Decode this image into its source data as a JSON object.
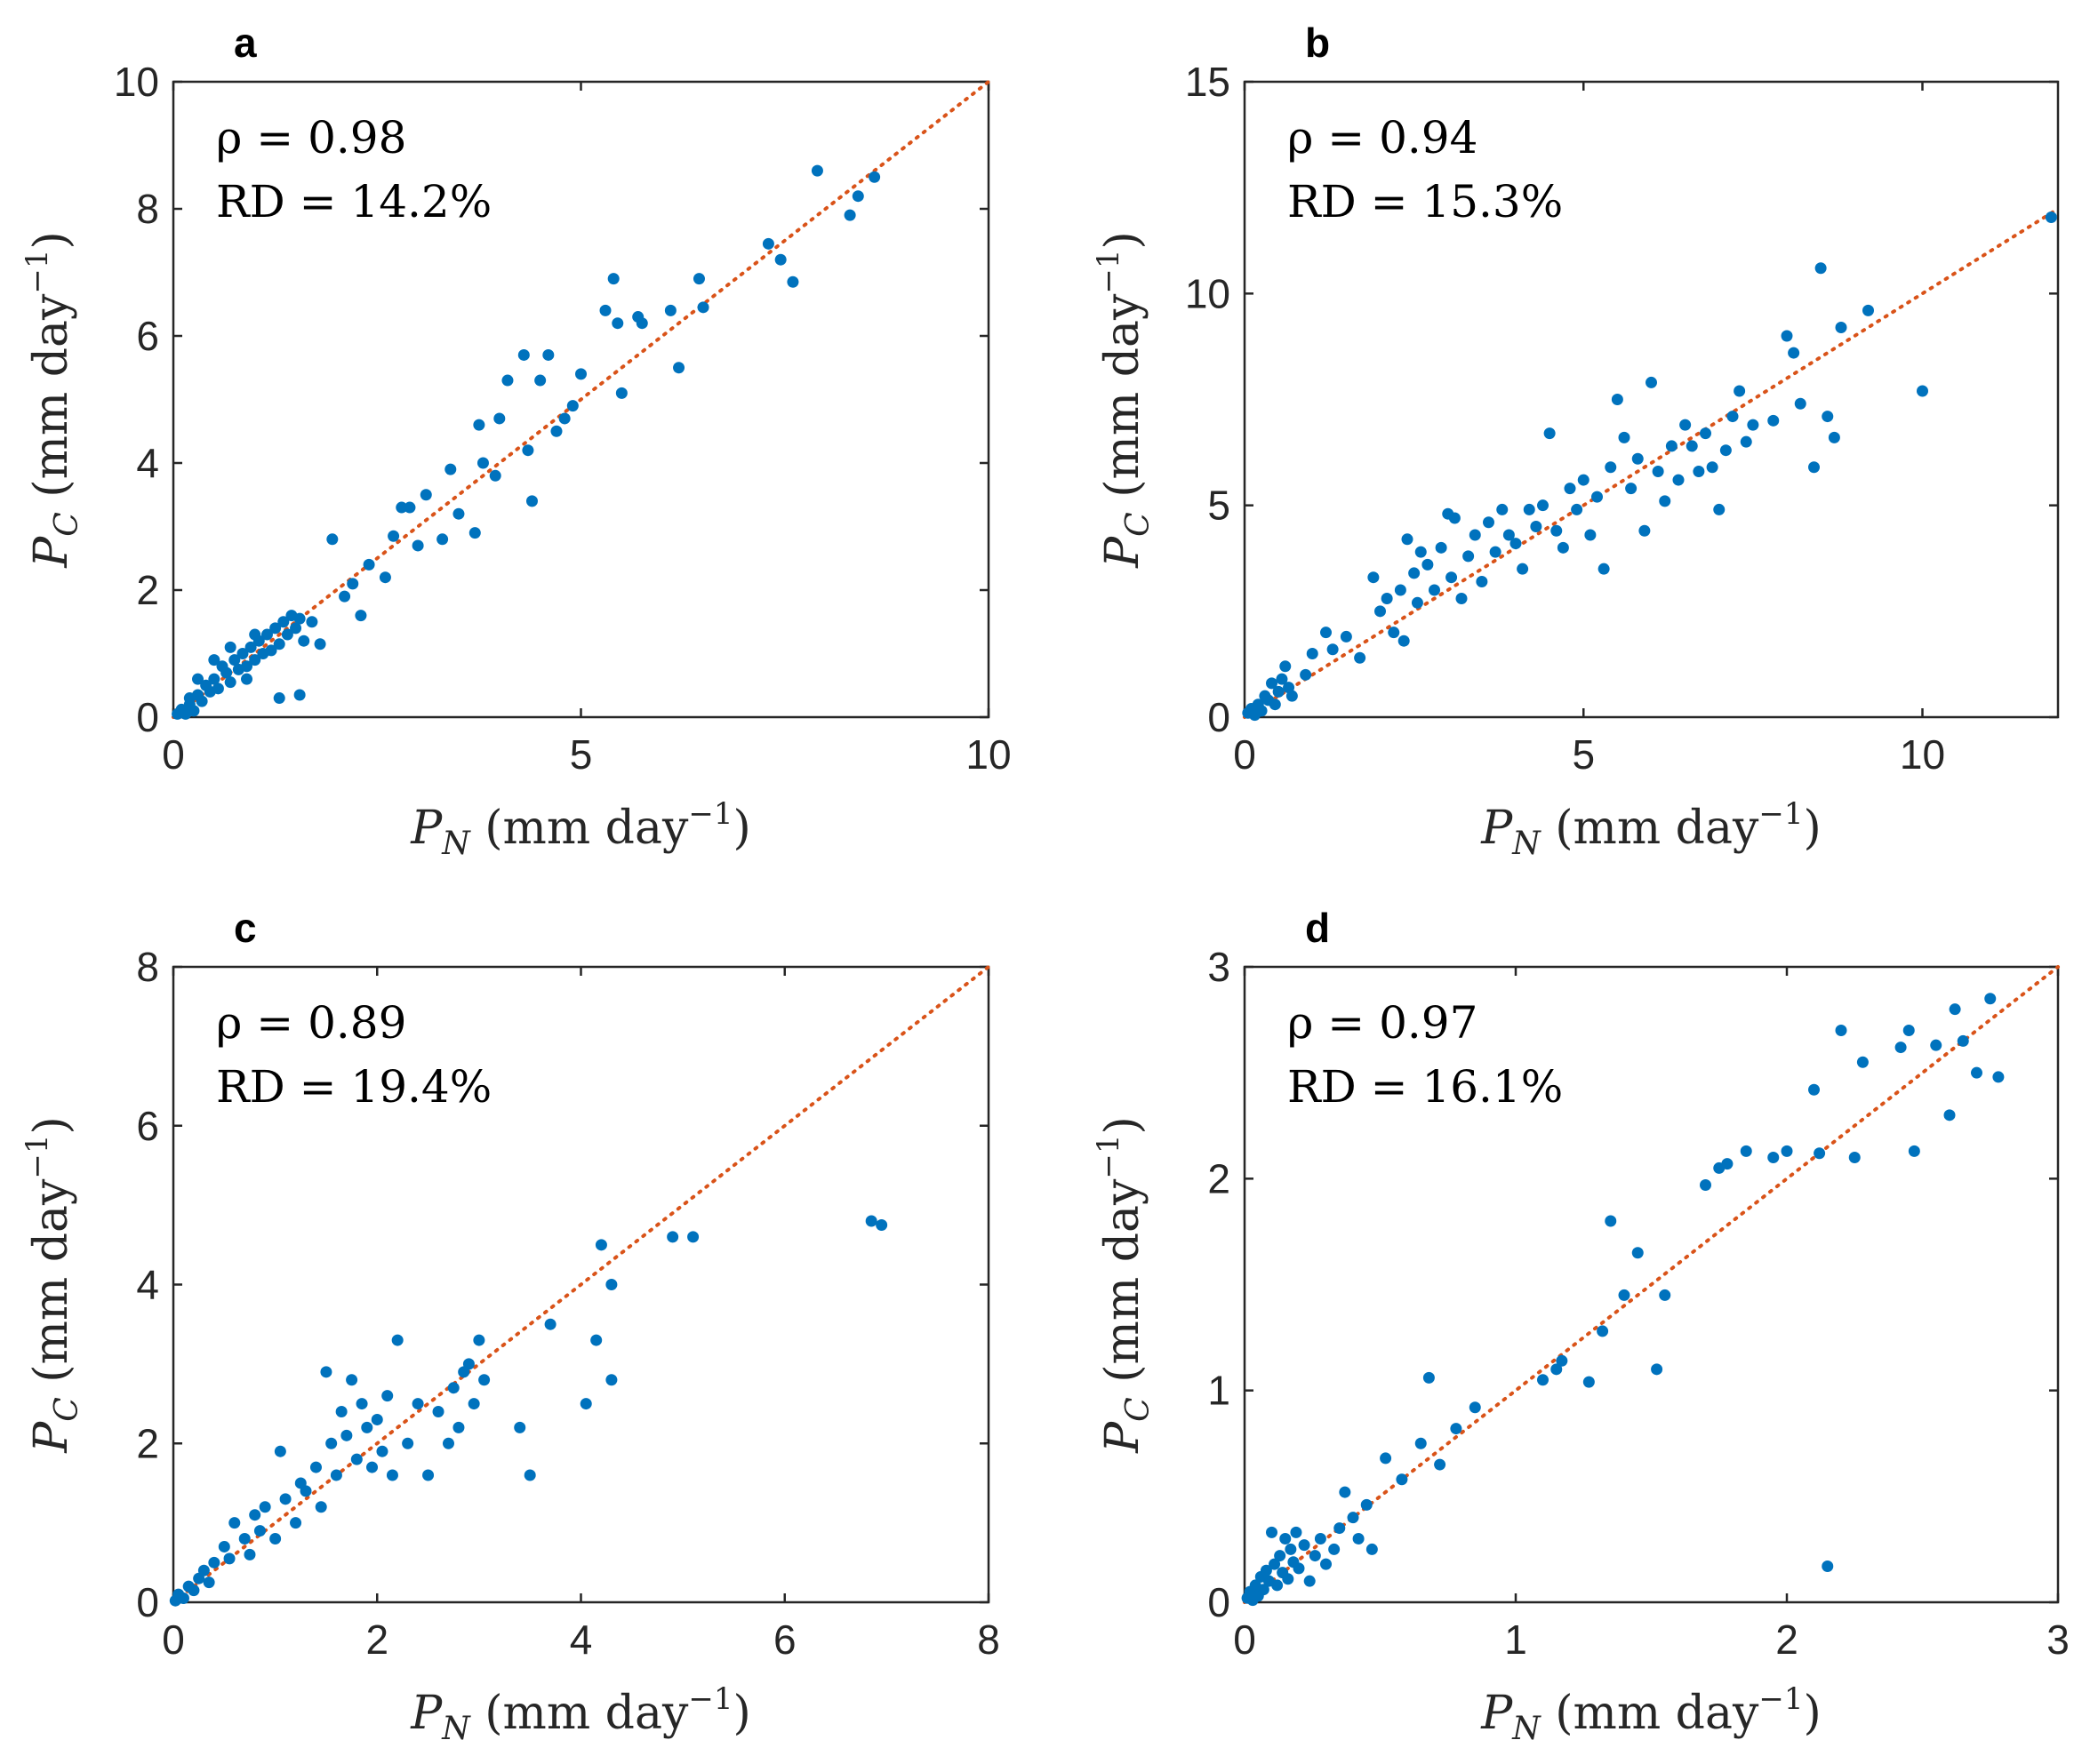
{
  "chart_data": [
    {
      "type": "scatter",
      "panel_label": "a",
      "annotation_rho": "ρ = 0.98",
      "annotation_rd": "RD = 14.2%",
      "xlabel": "P_N (mm day^-1)",
      "ylabel": "P_C (mm day^-1)",
      "xlabel_main": "P",
      "xlabel_sub": "N",
      "xlabel_unit": " (mm day",
      "xlabel_sup": "−1",
      "xlabel_close": ")",
      "ylabel_main": "P",
      "ylabel_sub": "C",
      "ylabel_unit": " (mm day",
      "ylabel_sup": "−1",
      "ylabel_close": ")",
      "xlim": [
        0,
        10
      ],
      "ylim": [
        0,
        10
      ],
      "xticks": [
        0,
        5,
        10
      ],
      "yticks": [
        0,
        2,
        4,
        6,
        8,
        10
      ],
      "reference_line": "y = x",
      "points": [
        [
          0.05,
          0.05
        ],
        [
          0.1,
          0.12
        ],
        [
          0.15,
          0.05
        ],
        [
          0.2,
          0.2
        ],
        [
          0.25,
          0.1
        ],
        [
          0.3,
          0.35
        ],
        [
          0.35,
          0.25
        ],
        [
          0.4,
          0.5
        ],
        [
          0.45,
          0.4
        ],
        [
          0.5,
          0.6
        ],
        [
          0.55,
          0.45
        ],
        [
          0.6,
          0.8
        ],
        [
          0.65,
          0.7
        ],
        [
          0.7,
          0.55
        ],
        [
          0.75,
          0.9
        ],
        [
          0.8,
          0.75
        ],
        [
          0.85,
          1.0
        ],
        [
          0.9,
          0.8
        ],
        [
          0.95,
          1.1
        ],
        [
          1.0,
          0.9
        ],
        [
          1.05,
          1.2
        ],
        [
          1.1,
          1.0
        ],
        [
          1.15,
          1.3
        ],
        [
          1.2,
          1.05
        ],
        [
          1.25,
          1.4
        ],
        [
          1.3,
          1.15
        ],
        [
          1.35,
          1.5
        ],
        [
          1.4,
          1.3
        ],
        [
          1.45,
          1.6
        ],
        [
          1.5,
          1.4
        ],
        [
          1.55,
          1.55
        ],
        [
          1.6,
          1.2
        ],
        [
          1.3,
          0.3
        ],
        [
          1.55,
          0.35
        ],
        [
          0.5,
          0.9
        ],
        [
          0.7,
          1.1
        ],
        [
          0.9,
          0.6
        ],
        [
          0.3,
          0.6
        ],
        [
          0.2,
          0.3
        ],
        [
          1.0,
          1.3
        ],
        [
          1.7,
          1.5
        ],
        [
          1.8,
          1.15
        ],
        [
          1.95,
          2.8
        ],
        [
          2.1,
          1.9
        ],
        [
          2.2,
          2.1
        ],
        [
          2.3,
          1.6
        ],
        [
          2.4,
          2.4
        ],
        [
          2.6,
          2.2
        ],
        [
          2.7,
          2.85
        ],
        [
          2.8,
          3.3
        ],
        [
          2.9,
          3.3
        ],
        [
          3.0,
          2.7
        ],
        [
          3.1,
          3.5
        ],
        [
          3.3,
          2.8
        ],
        [
          3.4,
          3.9
        ],
        [
          3.5,
          3.2
        ],
        [
          3.7,
          2.9
        ],
        [
          3.75,
          4.6
        ],
        [
          3.8,
          4.0
        ],
        [
          3.95,
          3.8
        ],
        [
          4.0,
          4.7
        ],
        [
          4.1,
          5.3
        ],
        [
          4.3,
          5.7
        ],
        [
          4.35,
          4.2
        ],
        [
          4.4,
          3.4
        ],
        [
          4.5,
          5.3
        ],
        [
          4.6,
          5.7
        ],
        [
          4.7,
          4.5
        ],
        [
          4.8,
          4.7
        ],
        [
          4.9,
          4.9
        ],
        [
          5.0,
          5.4
        ],
        [
          5.3,
          6.4
        ],
        [
          5.4,
          6.9
        ],
        [
          5.45,
          6.2
        ],
        [
          5.5,
          5.1
        ],
        [
          5.7,
          6.3
        ],
        [
          5.75,
          6.2
        ],
        [
          6.1,
          6.4
        ],
        [
          6.2,
          5.5
        ],
        [
          6.45,
          6.9
        ],
        [
          6.5,
          6.45
        ],
        [
          7.3,
          7.45
        ],
        [
          7.45,
          7.2
        ],
        [
          7.6,
          6.85
        ],
        [
          7.9,
          8.6
        ],
        [
          8.3,
          7.9
        ],
        [
          8.4,
          8.2
        ],
        [
          8.6,
          8.5
        ]
      ]
    },
    {
      "type": "scatter",
      "panel_label": "b",
      "annotation_rho": "ρ = 0.94",
      "annotation_rd": "RD = 15.3%",
      "xlabel": "P_N (mm day^-1)",
      "ylabel": "P_C (mm day^-1)",
      "xlabel_main": "P",
      "xlabel_sub": "N",
      "xlabel_unit": " (mm day",
      "xlabel_sup": "−1",
      "xlabel_close": ")",
      "ylabel_main": "P",
      "ylabel_sub": "C",
      "ylabel_unit": " (mm day",
      "ylabel_sup": "−1",
      "ylabel_close": ")",
      "xlim": [
        0,
        12
      ],
      "ylim": [
        0,
        15
      ],
      "xticks": [
        0,
        5,
        10
      ],
      "yticks": [
        0,
        5,
        10,
        15
      ],
      "reference_line": "y = x",
      "points": [
        [
          0.05,
          0.1
        ],
        [
          0.1,
          0.2
        ],
        [
          0.15,
          0.05
        ],
        [
          0.2,
          0.3
        ],
        [
          0.25,
          0.15
        ],
        [
          0.3,
          0.5
        ],
        [
          0.35,
          0.4
        ],
        [
          0.4,
          0.8
        ],
        [
          0.45,
          0.3
        ],
        [
          0.5,
          0.6
        ],
        [
          0.55,
          0.9
        ],
        [
          0.6,
          1.2
        ],
        [
          0.65,
          0.7
        ],
        [
          0.7,
          0.5
        ],
        [
          0.9,
          1.0
        ],
        [
          1.0,
          1.5
        ],
        [
          1.2,
          2.0
        ],
        [
          1.3,
          1.6
        ],
        [
          1.5,
          1.9
        ],
        [
          1.7,
          1.4
        ],
        [
          1.9,
          3.3
        ],
        [
          2.0,
          2.5
        ],
        [
          2.1,
          2.8
        ],
        [
          2.2,
          2.0
        ],
        [
          2.3,
          3.0
        ],
        [
          2.35,
          1.8
        ],
        [
          2.4,
          4.2
        ],
        [
          2.5,
          3.4
        ],
        [
          2.55,
          2.7
        ],
        [
          2.6,
          3.9
        ],
        [
          2.7,
          3.6
        ],
        [
          2.8,
          3.0
        ],
        [
          2.9,
          4.0
        ],
        [
          3.0,
          4.8
        ],
        [
          3.05,
          3.3
        ],
        [
          3.1,
          4.7
        ],
        [
          3.2,
          2.8
        ],
        [
          3.3,
          3.8
        ],
        [
          3.4,
          4.3
        ],
        [
          3.5,
          3.2
        ],
        [
          3.6,
          4.6
        ],
        [
          3.7,
          3.9
        ],
        [
          3.8,
          4.9
        ],
        [
          3.9,
          4.3
        ],
        [
          4.0,
          4.1
        ],
        [
          4.1,
          3.5
        ],
        [
          4.2,
          4.9
        ],
        [
          4.3,
          4.5
        ],
        [
          4.4,
          5.0
        ],
        [
          4.5,
          6.7
        ],
        [
          4.6,
          4.4
        ],
        [
          4.7,
          4.0
        ],
        [
          4.8,
          5.4
        ],
        [
          4.9,
          4.9
        ],
        [
          5.0,
          5.6
        ],
        [
          5.1,
          4.3
        ],
        [
          5.2,
          5.2
        ],
        [
          5.3,
          3.5
        ],
        [
          5.4,
          5.9
        ],
        [
          5.5,
          7.5
        ],
        [
          5.6,
          6.6
        ],
        [
          5.7,
          5.4
        ],
        [
          5.8,
          6.1
        ],
        [
          5.9,
          4.4
        ],
        [
          6.0,
          7.9
        ],
        [
          6.1,
          5.8
        ],
        [
          6.2,
          5.1
        ],
        [
          6.3,
          6.4
        ],
        [
          6.4,
          5.6
        ],
        [
          6.5,
          6.9
        ],
        [
          6.6,
          6.4
        ],
        [
          6.7,
          5.8
        ],
        [
          6.8,
          6.7
        ],
        [
          6.9,
          5.9
        ],
        [
          7.0,
          4.9
        ],
        [
          7.1,
          6.3
        ],
        [
          7.2,
          7.1
        ],
        [
          7.3,
          7.7
        ],
        [
          7.4,
          6.5
        ],
        [
          7.5,
          6.9
        ],
        [
          7.8,
          7.0
        ],
        [
          8.0,
          9.0
        ],
        [
          8.1,
          8.6
        ],
        [
          8.2,
          7.4
        ],
        [
          8.4,
          5.9
        ],
        [
          8.5,
          10.6
        ],
        [
          8.6,
          7.1
        ],
        [
          8.7,
          6.6
        ],
        [
          8.8,
          9.2
        ],
        [
          9.2,
          9.6
        ],
        [
          10.0,
          7.7
        ],
        [
          11.9,
          11.8
        ]
      ]
    },
    {
      "type": "scatter",
      "panel_label": "c",
      "annotation_rho": "ρ = 0.89",
      "annotation_rd": "RD = 19.4%",
      "xlabel": "P_N (mm day^-1)",
      "ylabel": "P_C (mm day^-1)",
      "xlabel_main": "P",
      "xlabel_sub": "N",
      "xlabel_unit": " (mm day",
      "xlabel_sup": "−1",
      "xlabel_close": ")",
      "ylabel_main": "P",
      "ylabel_sub": "C",
      "ylabel_unit": " (mm day",
      "ylabel_sup": "−1",
      "ylabel_close": ")",
      "xlim": [
        0,
        8
      ],
      "ylim": [
        0,
        8
      ],
      "xticks": [
        0,
        2,
        4,
        6,
        8
      ],
      "yticks": [
        0,
        2,
        4,
        6,
        8
      ],
      "reference_line": "y = x",
      "points": [
        [
          0.02,
          0.02
        ],
        [
          0.05,
          0.1
        ],
        [
          0.1,
          0.05
        ],
        [
          0.15,
          0.2
        ],
        [
          0.2,
          0.15
        ],
        [
          0.25,
          0.3
        ],
        [
          0.3,
          0.4
        ],
        [
          0.35,
          0.25
        ],
        [
          0.4,
          0.5
        ],
        [
          0.5,
          0.7
        ],
        [
          0.55,
          0.55
        ],
        [
          0.6,
          1.0
        ],
        [
          0.7,
          0.8
        ],
        [
          0.75,
          0.6
        ],
        [
          0.8,
          1.1
        ],
        [
          0.85,
          0.9
        ],
        [
          0.9,
          1.2
        ],
        [
          1.0,
          0.8
        ],
        [
          1.05,
          1.9
        ],
        [
          1.1,
          1.3
        ],
        [
          1.2,
          1.0
        ],
        [
          1.25,
          1.5
        ],
        [
          1.3,
          1.4
        ],
        [
          1.4,
          1.7
        ],
        [
          1.45,
          1.2
        ],
        [
          1.5,
          2.9
        ],
        [
          1.55,
          2.0
        ],
        [
          1.6,
          1.6
        ],
        [
          1.65,
          2.4
        ],
        [
          1.7,
          2.1
        ],
        [
          1.75,
          2.8
        ],
        [
          1.8,
          1.8
        ],
        [
          1.85,
          2.5
        ],
        [
          1.9,
          2.2
        ],
        [
          1.95,
          1.7
        ],
        [
          2.0,
          2.3
        ],
        [
          2.05,
          1.9
        ],
        [
          2.1,
          2.6
        ],
        [
          2.15,
          1.6
        ],
        [
          2.2,
          3.3
        ],
        [
          2.3,
          2.0
        ],
        [
          2.4,
          2.5
        ],
        [
          2.5,
          1.6
        ],
        [
          2.6,
          2.4
        ],
        [
          2.7,
          2.0
        ],
        [
          2.75,
          2.7
        ],
        [
          2.8,
          2.2
        ],
        [
          2.85,
          2.9
        ],
        [
          2.9,
          3.0
        ],
        [
          2.95,
          2.5
        ],
        [
          3.0,
          3.3
        ],
        [
          3.05,
          2.8
        ],
        [
          3.4,
          2.2
        ],
        [
          3.5,
          1.6
        ],
        [
          3.7,
          3.5
        ],
        [
          4.05,
          2.5
        ],
        [
          4.15,
          3.3
        ],
        [
          4.2,
          4.5
        ],
        [
          4.3,
          2.8
        ],
        [
          4.3,
          4.0
        ],
        [
          4.9,
          4.6
        ],
        [
          5.1,
          4.6
        ],
        [
          6.85,
          4.8
        ],
        [
          6.95,
          4.75
        ]
      ]
    },
    {
      "type": "scatter",
      "panel_label": "d",
      "annotation_rho": "ρ = 0.97",
      "annotation_rd": "RD = 16.1%",
      "xlabel": "P_N (mm day^-1)",
      "ylabel": "P_C (mm day^-1)",
      "xlabel_main": "P",
      "xlabel_sub": "N",
      "xlabel_unit": " (mm day",
      "xlabel_sup": "−1",
      "xlabel_close": ")",
      "ylabel_main": "P",
      "ylabel_sub": "C",
      "ylabel_unit": " (mm day",
      "ylabel_sup": "−1",
      "ylabel_close": ")",
      "xlim": [
        0,
        3
      ],
      "ylim": [
        0,
        3
      ],
      "xticks": [
        0,
        1,
        2,
        3
      ],
      "yticks": [
        0,
        1,
        2,
        3
      ],
      "reference_line": "y = x",
      "points": [
        [
          0.01,
          0.02
        ],
        [
          0.02,
          0.05
        ],
        [
          0.03,
          0.01
        ],
        [
          0.04,
          0.08
        ],
        [
          0.05,
          0.03
        ],
        [
          0.06,
          0.12
        ],
        [
          0.07,
          0.06
        ],
        [
          0.08,
          0.15
        ],
        [
          0.09,
          0.1
        ],
        [
          0.1,
          0.33
        ],
        [
          0.11,
          0.18
        ],
        [
          0.12,
          0.08
        ],
        [
          0.13,
          0.22
        ],
        [
          0.14,
          0.14
        ],
        [
          0.15,
          0.3
        ],
        [
          0.16,
          0.11
        ],
        [
          0.17,
          0.25
        ],
        [
          0.18,
          0.19
        ],
        [
          0.19,
          0.33
        ],
        [
          0.2,
          0.16
        ],
        [
          0.22,
          0.27
        ],
        [
          0.24,
          0.1
        ],
        [
          0.26,
          0.22
        ],
        [
          0.28,
          0.3
        ],
        [
          0.3,
          0.18
        ],
        [
          0.33,
          0.25
        ],
        [
          0.35,
          0.35
        ],
        [
          0.37,
          0.52
        ],
        [
          0.4,
          0.4
        ],
        [
          0.42,
          0.3
        ],
        [
          0.45,
          0.46
        ],
        [
          0.47,
          0.25
        ],
        [
          0.52,
          0.68
        ],
        [
          0.58,
          0.58
        ],
        [
          0.65,
          0.75
        ],
        [
          0.68,
          1.06
        ],
        [
          0.72,
          0.65
        ],
        [
          0.78,
          0.82
        ],
        [
          0.85,
          0.92
        ],
        [
          1.1,
          1.05
        ],
        [
          1.15,
          1.1
        ],
        [
          1.17,
          1.14
        ],
        [
          1.27,
          1.04
        ],
        [
          1.32,
          1.28
        ],
        [
          1.35,
          1.8
        ],
        [
          1.4,
          1.45
        ],
        [
          1.45,
          1.65
        ],
        [
          1.52,
          1.1
        ],
        [
          1.55,
          1.45
        ],
        [
          1.7,
          1.97
        ],
        [
          1.75,
          2.05
        ],
        [
          1.78,
          2.07
        ],
        [
          1.85,
          2.13
        ],
        [
          1.95,
          2.1
        ],
        [
          2.0,
          2.13
        ],
        [
          2.1,
          2.42
        ],
        [
          2.12,
          2.12
        ],
        [
          2.15,
          0.17
        ],
        [
          2.2,
          2.7
        ],
        [
          2.25,
          2.1
        ],
        [
          2.28,
          2.55
        ],
        [
          2.42,
          2.62
        ],
        [
          2.45,
          2.7
        ],
        [
          2.47,
          2.13
        ],
        [
          2.55,
          2.63
        ],
        [
          2.6,
          2.3
        ],
        [
          2.62,
          2.8
        ],
        [
          2.65,
          2.65
        ],
        [
          2.7,
          2.5
        ],
        [
          2.75,
          2.85
        ],
        [
          2.78,
          2.48
        ]
      ]
    }
  ]
}
